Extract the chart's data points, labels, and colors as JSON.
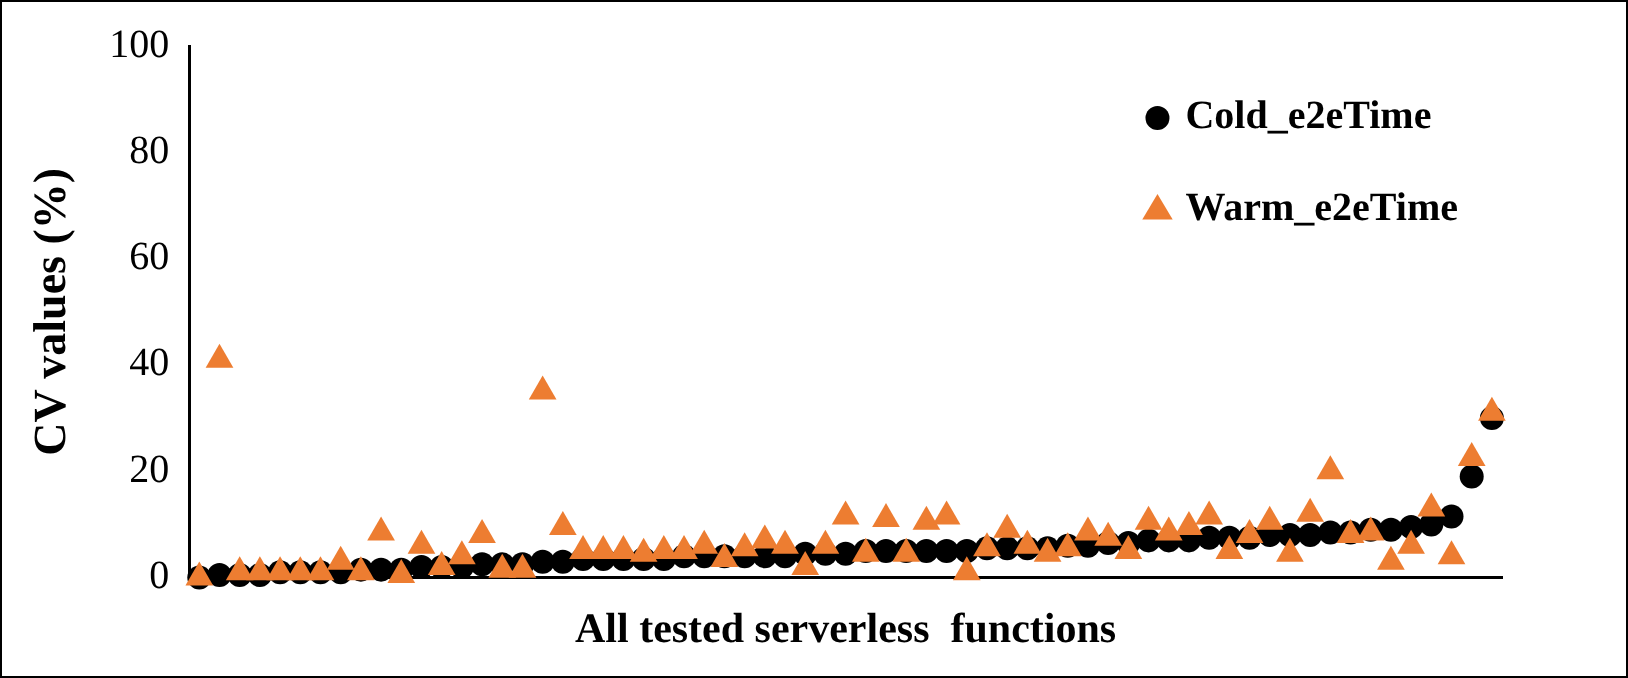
{
  "chart_data": {
    "type": "scatter",
    "xlabel": "All tested serverless  functions",
    "ylabel": "CV values (%)",
    "categories": [
      null,
      null,
      null,
      null,
      null,
      null,
      null,
      null,
      null,
      null,
      null,
      null,
      null,
      null,
      null,
      null,
      null,
      null,
      null,
      null,
      null,
      null,
      null,
      null,
      null,
      null,
      null,
      null,
      null,
      null,
      null,
      null,
      null,
      null,
      null,
      null,
      null,
      null,
      null,
      null,
      null,
      null,
      null,
      null,
      null,
      null,
      null,
      null,
      null,
      null,
      null,
      null,
      null,
      null,
      null,
      null,
      null,
      null,
      null,
      null,
      null,
      null,
      null,
      null,
      null
    ],
    "ylim": [
      0,
      100
    ],
    "yticks": [
      0,
      20,
      40,
      60,
      80,
      100
    ],
    "grid": false,
    "legend": "top right",
    "tick_labels": "y",
    "series": [
      {
        "name": "Cold_e2eTime",
        "color": "#000000",
        "marker": "circle",
        "values": [
          0,
          0.5,
          0.5,
          0.5,
          1,
          1,
          1,
          1,
          1.5,
          1.5,
          1.5,
          2,
          2,
          2,
          2.5,
          2.5,
          2.5,
          3,
          3,
          3.5,
          3.5,
          3.5,
          3.5,
          3.5,
          4,
          4,
          4,
          4,
          4,
          4,
          4.5,
          4.5,
          4.5,
          5,
          5,
          5,
          5,
          5,
          5,
          5.5,
          5.5,
          5.5,
          5.5,
          6,
          6,
          6.5,
          6.5,
          7,
          7,
          7,
          7.5,
          7.5,
          7.5,
          8,
          8,
          8,
          8.5,
          8.5,
          9,
          9,
          9.5,
          10,
          11.5,
          19,
          30
        ]
      },
      {
        "name": "Warm_e2eTime",
        "color": "#ed7d31",
        "marker": "triangle",
        "values": [
          0,
          41,
          1,
          1,
          1,
          1,
          1,
          3,
          1,
          8.5,
          0.5,
          6,
          2,
          4,
          8,
          1.5,
          1.5,
          35,
          9.5,
          5,
          5,
          5,
          4.5,
          5,
          5,
          6,
          3.5,
          5.5,
          7,
          6,
          2,
          6,
          11.5,
          4.5,
          11,
          4.5,
          10.5,
          11.5,
          1,
          5.5,
          9,
          6,
          4.5,
          5.5,
          8.5,
          7.5,
          5,
          10.5,
          8.5,
          9.5,
          11.5,
          5,
          8,
          10.5,
          4.5,
          12,
          20,
          8,
          8.5,
          3,
          6,
          13,
          4,
          22.5,
          31
        ]
      }
    ]
  }
}
